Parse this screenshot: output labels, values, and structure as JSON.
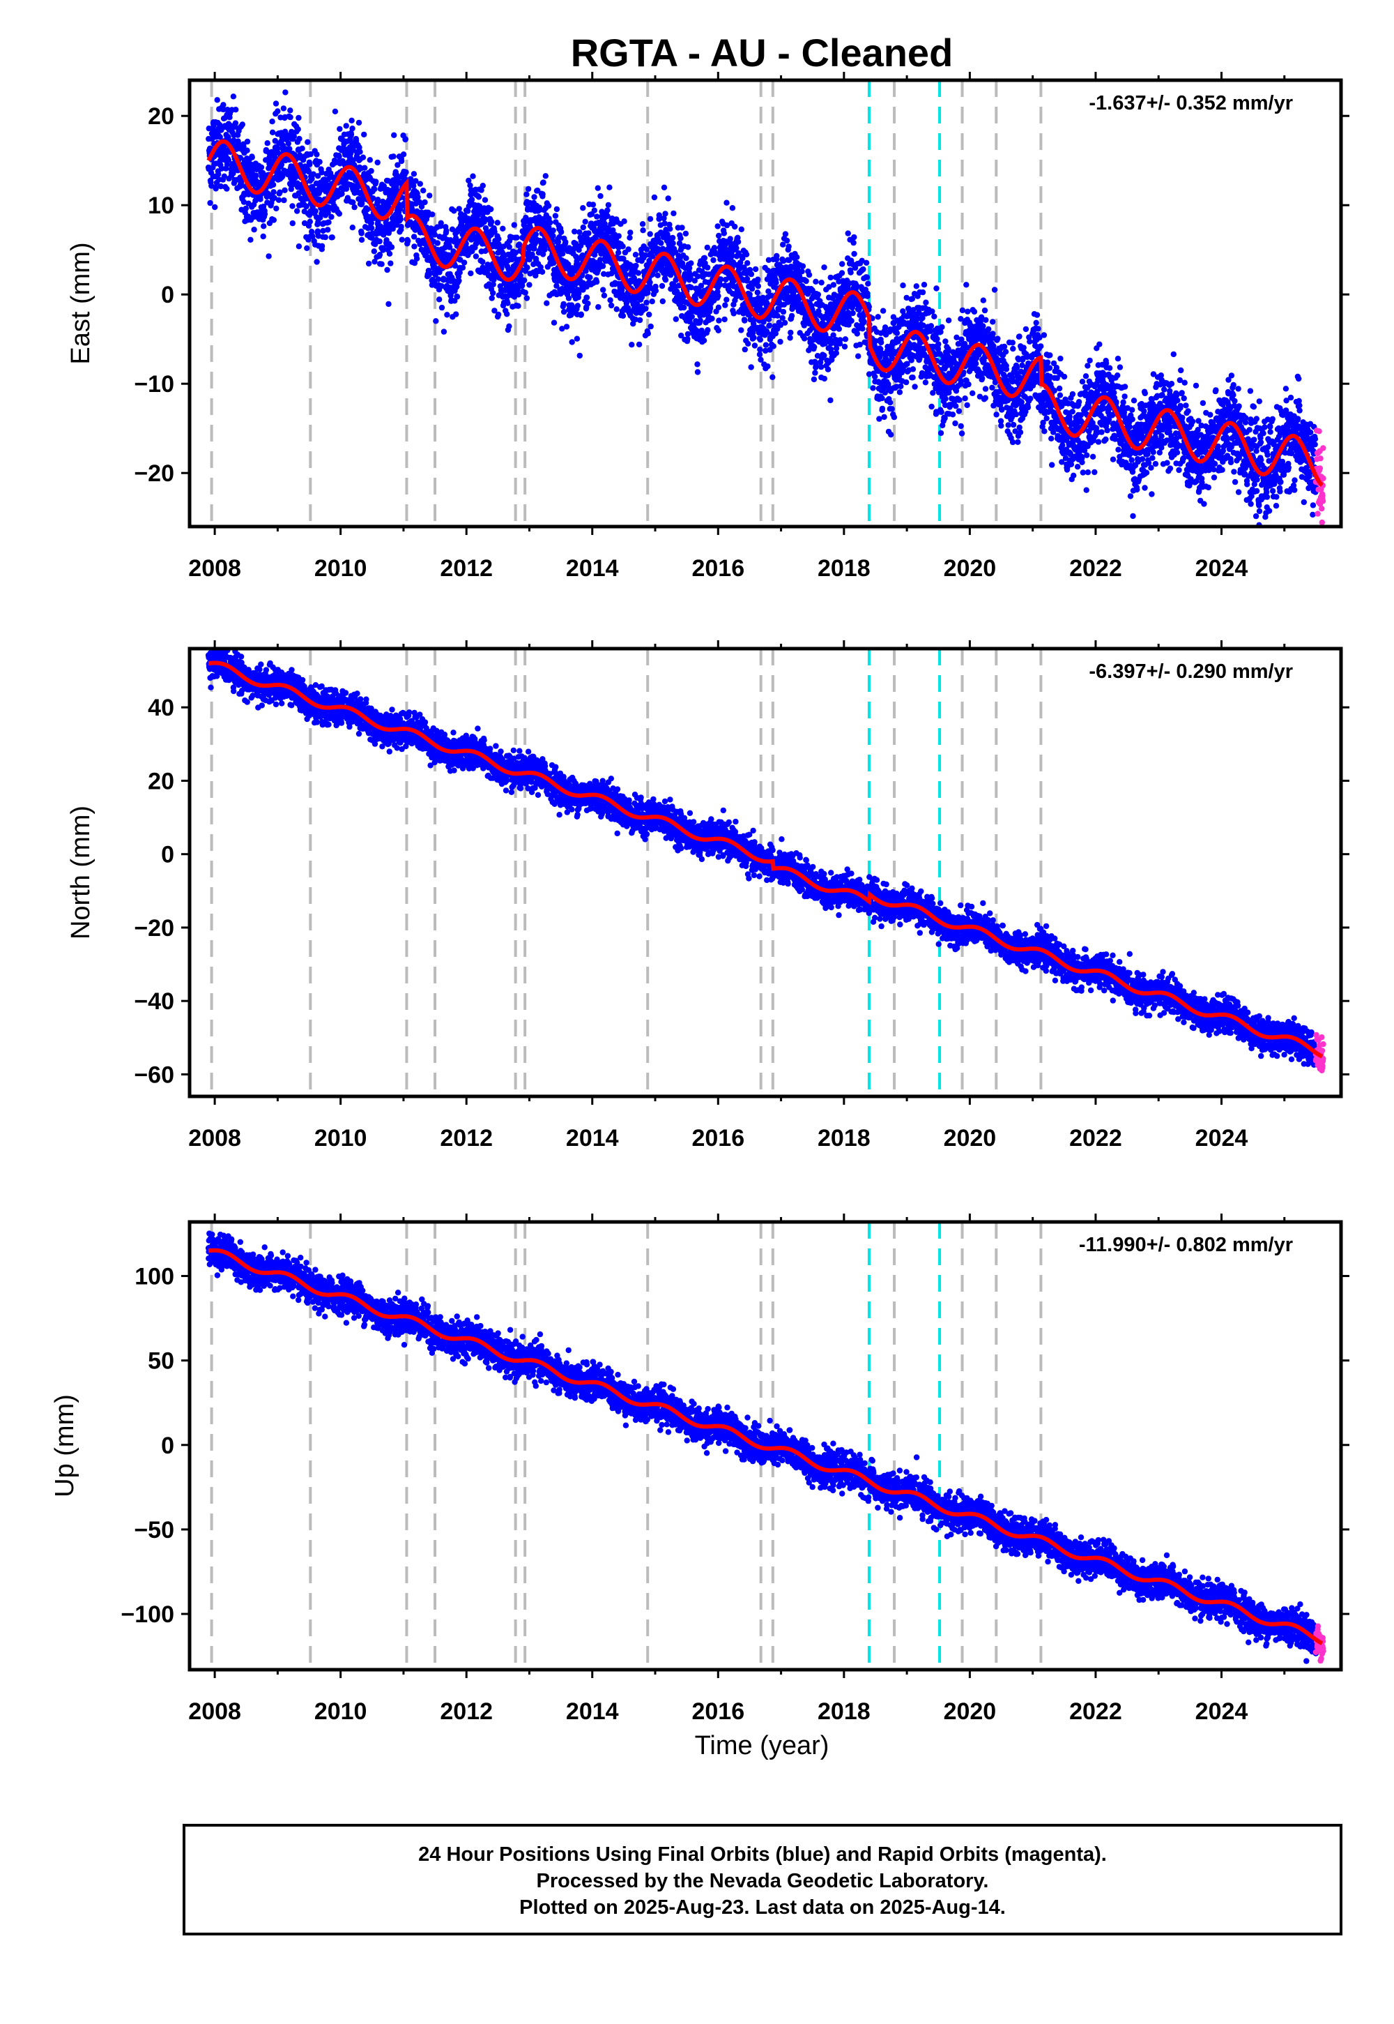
{
  "title": "RGTA  - AU - Cleaned",
  "colors": {
    "final_points": "#0000ff",
    "rapid_points": "#ff33cc",
    "fit_line": "#ff0000",
    "equipment_change": "#bbbbbb",
    "earthquake_event": "#00e5e5"
  },
  "x_axis": {
    "label": "Time (year)",
    "range": [
      2007.6,
      2025.9
    ],
    "ticks": [
      "2008",
      "2010",
      "2012",
      "2014",
      "2016",
      "2018",
      "2020",
      "2022",
      "2024"
    ]
  },
  "event_lines": {
    "gray": [
      2007.95,
      2009.52,
      2011.05,
      2011.5,
      2012.78,
      2012.93,
      2014.88,
      2016.68,
      2016.87,
      2018.8,
      2019.88,
      2020.42,
      2021.13
    ],
    "cyan": [
      2018.4,
      2019.52
    ]
  },
  "chart_data": [
    {
      "type": "scatter",
      "component": "East",
      "ylabel": "East (mm)",
      "ylim": [
        -26,
        24
      ],
      "yticks": [
        "20",
        "10",
        "0",
        "−10",
        "−20"
      ],
      "rate": "-1.637+/- 0.352 mm/yr",
      "trend": {
        "x": [
          2007.9,
          2025.6
        ],
        "y": [
          15,
          -19
        ]
      },
      "seasonal_amplitude": 2.5,
      "scatter_sd": 2.5,
      "offsets": [
        {
          "x": 2011.05,
          "dy": -4
        },
        {
          "x": 2012.9,
          "dy": 1.5
        },
        {
          "x": 2018.4,
          "dy": -3
        },
        {
          "x": 2021.13,
          "dy": -3
        }
      ],
      "series": [
        {
          "name": "Final Orbits",
          "x_range": [
            2007.9,
            2025.5
          ]
        },
        {
          "name": "Rapid Orbits",
          "x_range": [
            2025.5,
            2025.62
          ]
        }
      ]
    },
    {
      "type": "scatter",
      "component": "North",
      "ylabel": "North (mm)",
      "ylim": [
        -66,
        56
      ],
      "yticks": [
        "40",
        "20",
        "0",
        "−20",
        "−40",
        "−60"
      ],
      "rate": "-6.397+/- 0.290 mm/yr",
      "trend": {
        "x": [
          2007.9,
          2025.6
        ],
        "y": [
          52,
          -54
        ]
      },
      "seasonal_amplitude": 1.2,
      "scatter_sd": 2.2,
      "offsets": [
        {
          "x": 2016.87,
          "dy": -2
        },
        {
          "x": 2018.4,
          "dy": 2
        }
      ],
      "series": [
        {
          "name": "Final Orbits",
          "x_range": [
            2007.9,
            2025.5
          ]
        },
        {
          "name": "Rapid Orbits",
          "x_range": [
            2025.5,
            2025.62
          ]
        }
      ]
    },
    {
      "type": "scatter",
      "component": "Up",
      "ylabel": "Up (mm)",
      "ylim": [
        -133,
        132
      ],
      "yticks": [
        "100",
        "50",
        "0",
        "−50",
        "−100"
      ],
      "rate": "-11.990+/- 0.802 mm/yr",
      "trend": {
        "x": [
          2007.9,
          2025.6
        ],
        "y": [
          115,
          -115
        ]
      },
      "seasonal_amplitude": 2.5,
      "scatter_sd": 5,
      "offsets": [],
      "series": [
        {
          "name": "Final Orbits",
          "x_range": [
            2007.9,
            2025.5
          ]
        },
        {
          "name": "Rapid Orbits",
          "x_range": [
            2025.5,
            2025.62
          ]
        }
      ]
    }
  ],
  "footer": {
    "line1": "24 Hour Positions Using Final Orbits (blue) and Rapid Orbits (magenta).",
    "line2": "Processed by the Nevada Geodetic Laboratory.",
    "line3": "Plotted on 2025-Aug-23. Last data on 2025-Aug-14."
  }
}
